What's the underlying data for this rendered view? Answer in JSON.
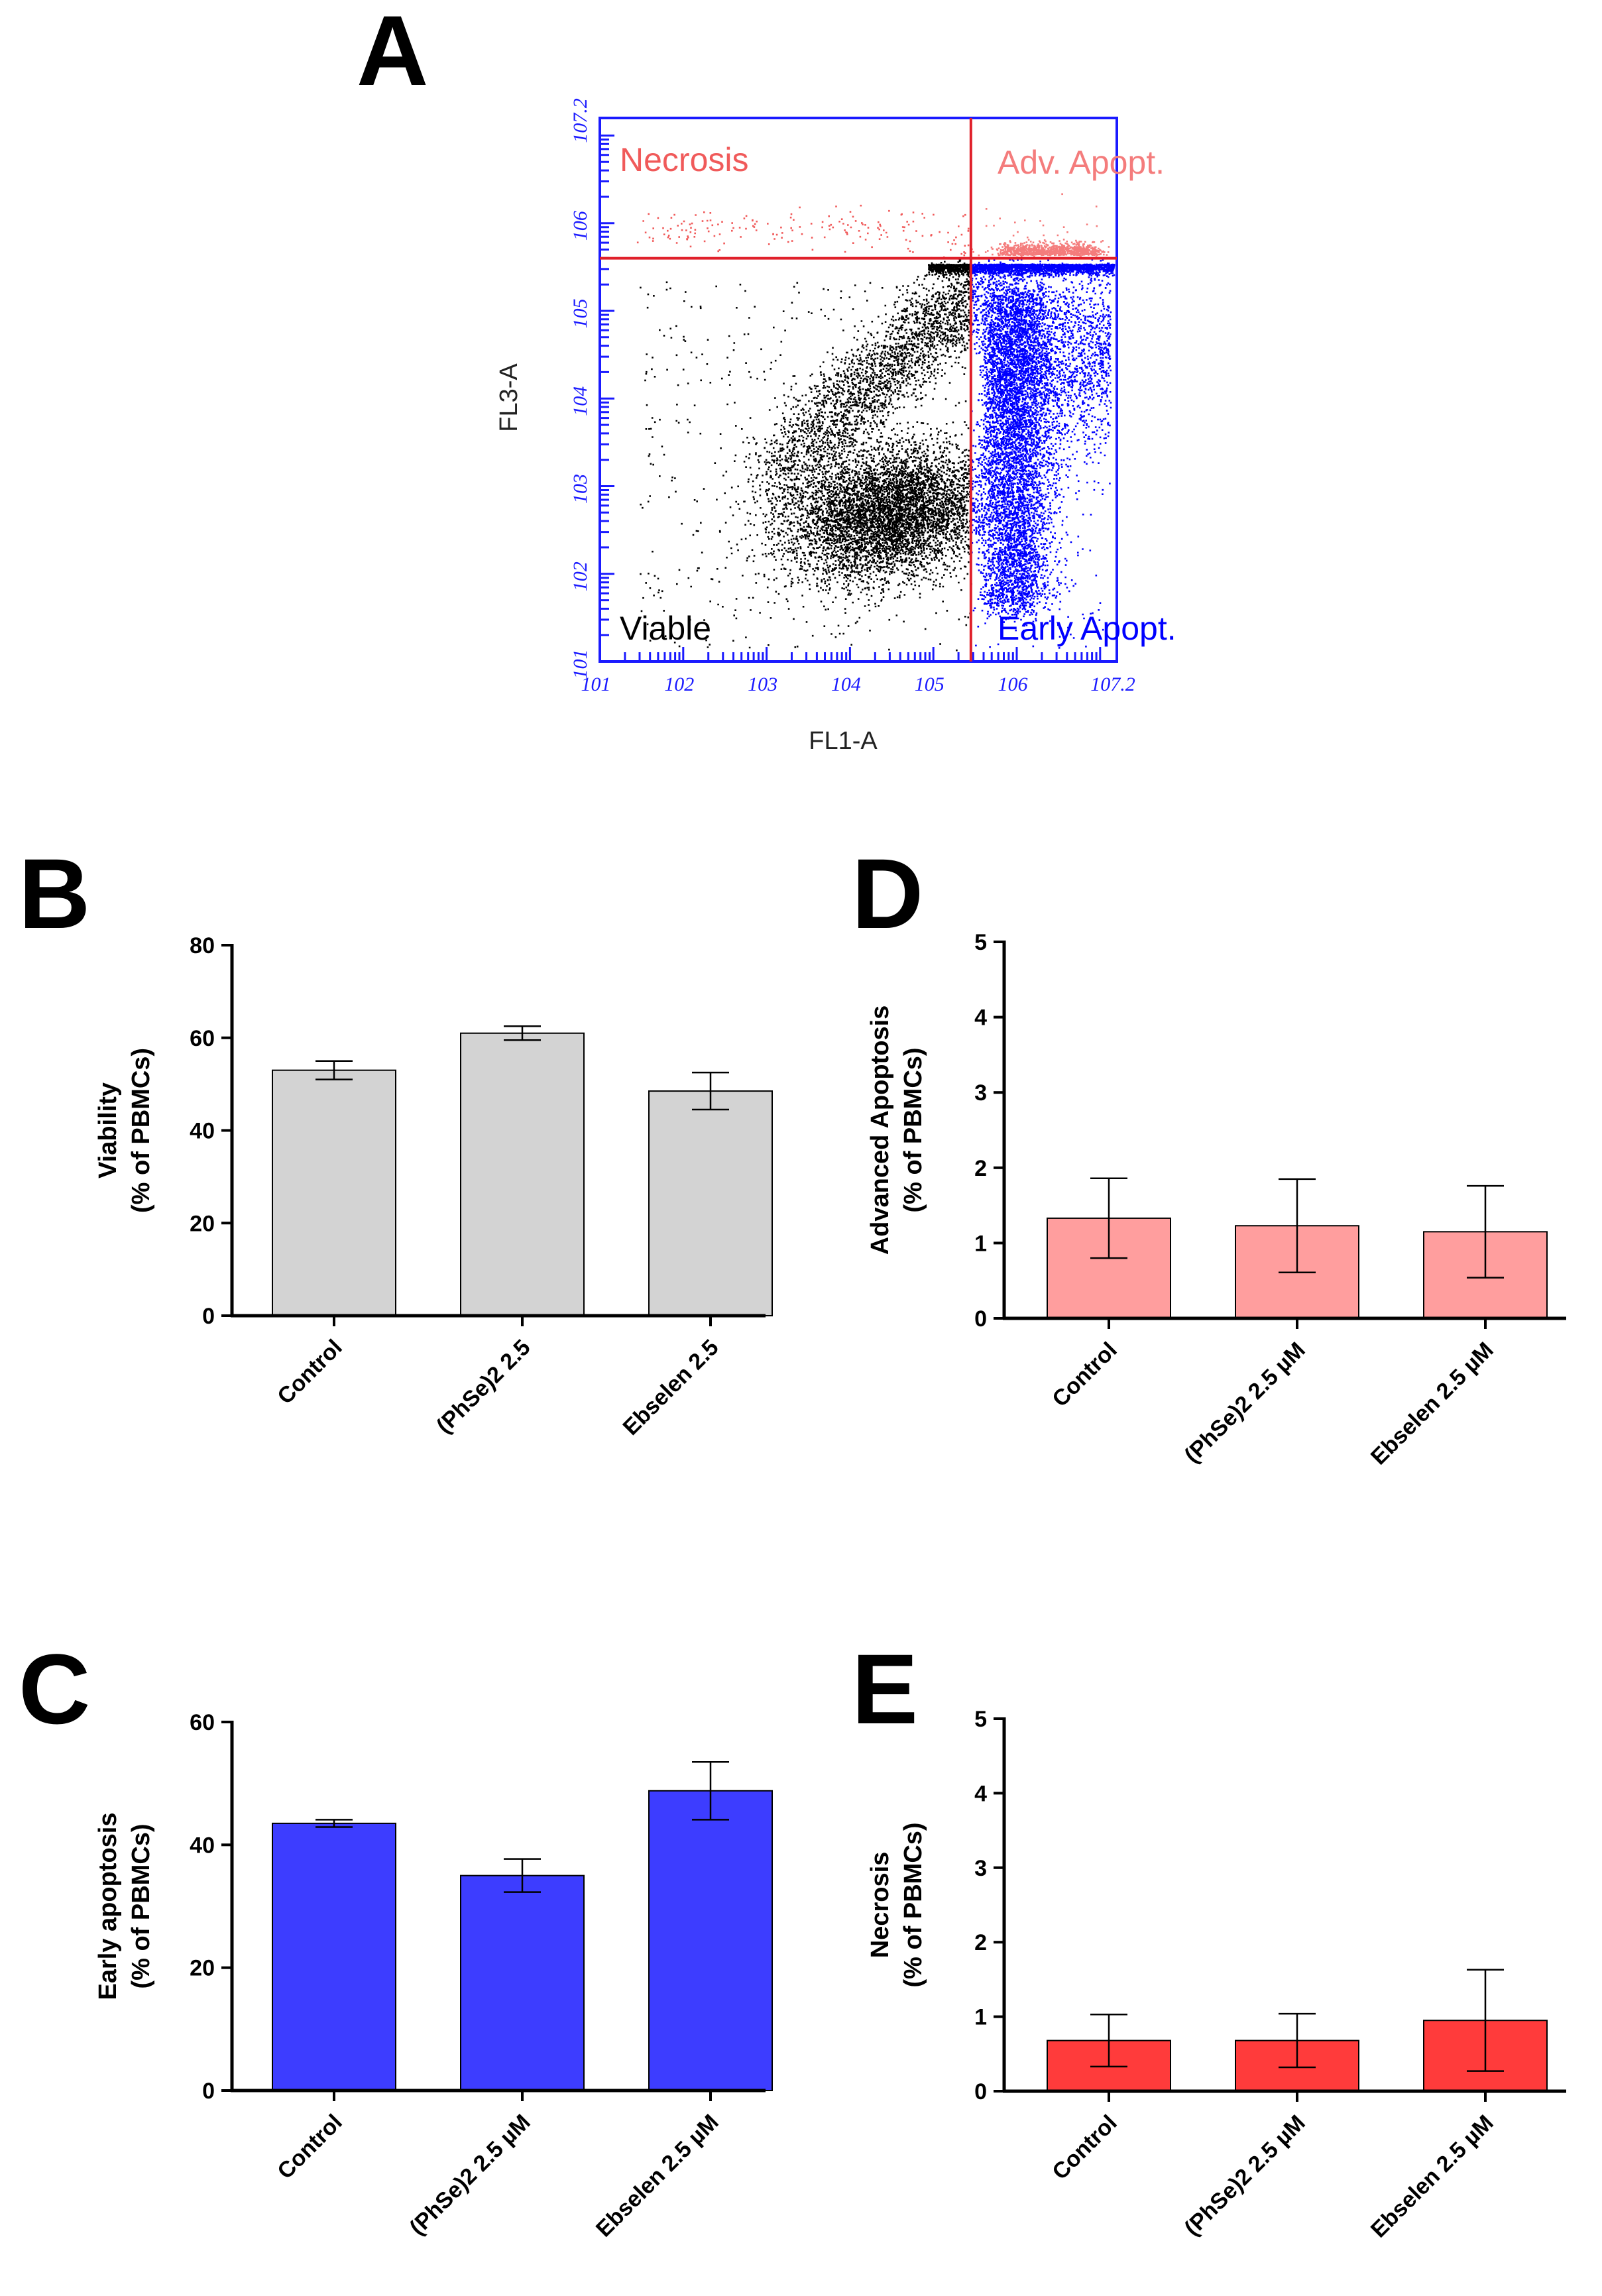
{
  "figure": {
    "panels": [
      "A",
      "B",
      "C",
      "D",
      "E"
    ]
  },
  "chart_data": [
    {
      "panel": "A",
      "type": "scatter",
      "xlabel": "FL1-A",
      "ylabel": "FL3-A",
      "x_tick_exponents": [
        "1",
        "2",
        "3",
        "4",
        "5",
        "6",
        "7.2"
      ],
      "y_tick_exponents": [
        "1",
        "2",
        "3",
        "4",
        "5",
        "6",
        "7.2"
      ],
      "xlim_log10": [
        1,
        7.2
      ],
      "ylim_log10": [
        1,
        7.2
      ],
      "gate_x_log10": 5.45,
      "gate_y_log10": 5.6,
      "quadrants": [
        {
          "label": "Necrosis",
          "color": "#f05a5a"
        },
        {
          "label": "Adv. Apopt.",
          "color": "#f47c7c"
        },
        {
          "label": "Viable",
          "color": "#000000"
        },
        {
          "label": "Early Apopt.",
          "color": "#0000ff"
        }
      ],
      "gate_color": "#e0202a",
      "axis_color": "#1a1aff"
    },
    {
      "panel": "B",
      "type": "bar",
      "categories": [
        "Control",
        "(PhSe)2 2.5",
        "Ebselen 2.5"
      ],
      "values": [
        53,
        61,
        48.5
      ],
      "errors": [
        2,
        1.5,
        4
      ],
      "ylabel_line1": "Viability",
      "ylabel_line2": "(% of PBMCs)",
      "ylim": [
        0,
        80
      ],
      "yticks": [
        "0",
        "20",
        "40",
        "60",
        "80"
      ],
      "color": "#d3d3d3"
    },
    {
      "panel": "C",
      "type": "bar",
      "categories": [
        "Control",
        "(PhSe)2 2.5 µM",
        "Ebselen 2.5 µM"
      ],
      "values": [
        43.5,
        35,
        48.8
      ],
      "errors": [
        0.6,
        2.7,
        4.7
      ],
      "ylabel_line1": "Early apoptosis",
      "ylabel_line2": "(% of PBMCs)",
      "ylim": [
        0,
        60
      ],
      "yticks": [
        "0",
        "20",
        "40",
        "60"
      ],
      "color": "#3d3dff"
    },
    {
      "panel": "D",
      "type": "bar",
      "categories": [
        "Control",
        "(PhSe)2 2.5 µM",
        "Ebselen 2.5 µM"
      ],
      "values": [
        1.33,
        1.23,
        1.15
      ],
      "errors": [
        0.53,
        0.62,
        0.61
      ],
      "ylabel_line1": "Advanced Apoptosis",
      "ylabel_line2": "(% of PBMCs)",
      "ylim": [
        0,
        5
      ],
      "yticks": [
        "0",
        "1",
        "2",
        "3",
        "4",
        "5"
      ],
      "color": "#ff9e9e"
    },
    {
      "panel": "E",
      "type": "bar",
      "categories": [
        "Control",
        "(PhSe)2 2.5 µM",
        "Ebselen 2.5 µM"
      ],
      "values": [
        0.68,
        0.68,
        0.95
      ],
      "errors": [
        0.35,
        0.36,
        0.68
      ],
      "ylabel_line1": "Necrosis",
      "ylabel_line2": "(% of PBMCs)",
      "ylim": [
        0,
        5
      ],
      "yticks": [
        "0",
        "1",
        "2",
        "3",
        "4",
        "5"
      ],
      "color": "#ff3b3b"
    }
  ]
}
